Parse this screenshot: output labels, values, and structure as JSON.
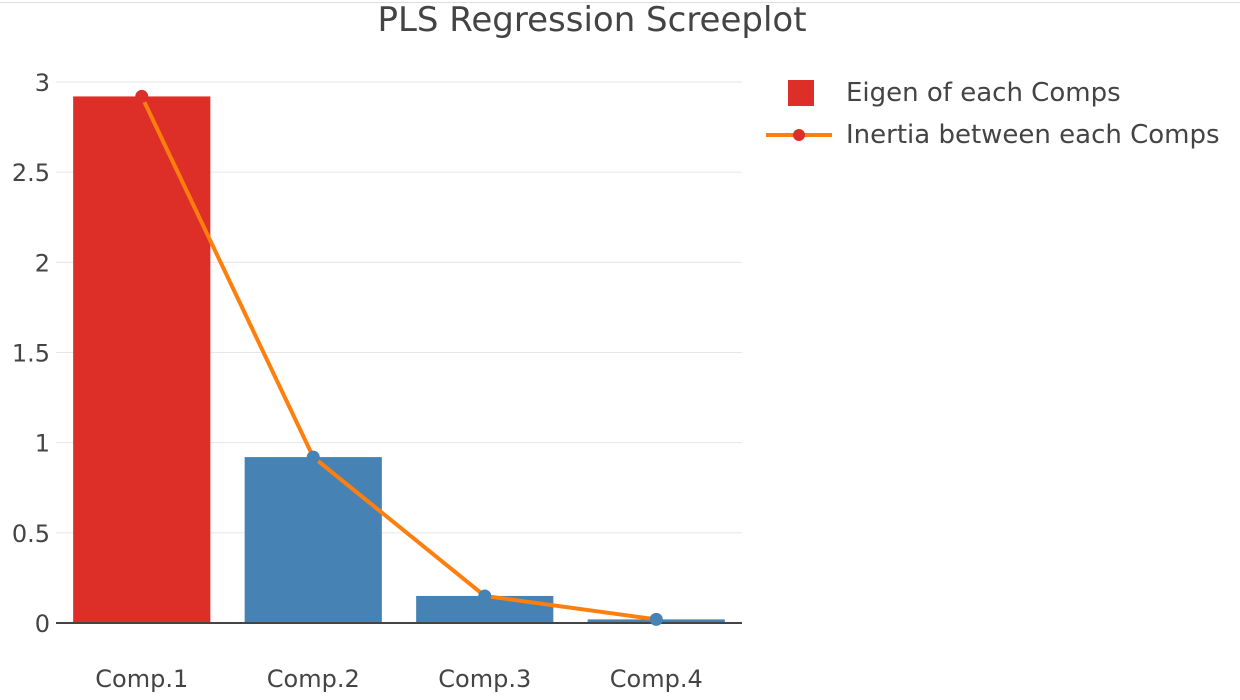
{
  "chart_data": {
    "type": "bar",
    "title": "PLS Regression Screeplot",
    "xlabel": "",
    "ylabel": "",
    "categories": [
      "Comp.1",
      "Comp.2",
      "Comp.3",
      "Comp.4"
    ],
    "ylim": [
      0,
      3
    ],
    "yticks": [
      0,
      0.5,
      1,
      1.5,
      2,
      2.5,
      3
    ],
    "ytick_labels": [
      "0",
      "0.5",
      "1",
      "1.5",
      "2",
      "2.5",
      "3"
    ],
    "grid": true,
    "legend_position": "top-right",
    "series": [
      {
        "name": "Eigen of each Comps",
        "type": "bar",
        "values": [
          2.92,
          0.92,
          0.15,
          0.02
        ],
        "colors": [
          "#dd2e27",
          "#4682b4",
          "#4682b4",
          "#4682b4"
        ]
      },
      {
        "name": "Inertia between each Comps",
        "type": "line",
        "values": [
          2.92,
          0.92,
          0.15,
          0.02
        ],
        "line_color": "#ff7f0e",
        "marker_colors": [
          "#dd2e27",
          "#4682b4",
          "#4682b4",
          "#4682b4"
        ]
      }
    ],
    "legend_colors": {
      "bar": "#dd2e27",
      "line": "#ff7f0e",
      "line_marker": "#dd2e27"
    }
  }
}
